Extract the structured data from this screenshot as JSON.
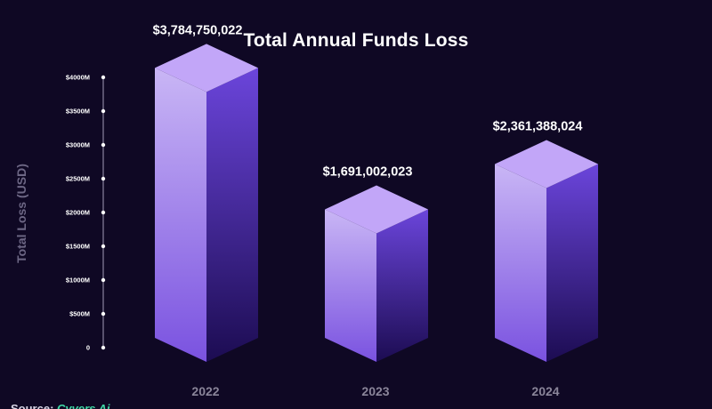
{
  "chart_data": {
    "type": "bar",
    "title": "Total Annual Funds Loss",
    "ylabel": "Total Loss (USD)",
    "xlabel": "",
    "categories": [
      "2022",
      "2023",
      "2024"
    ],
    "values": [
      3784750022,
      1691002023,
      2361388024
    ],
    "data_labels": [
      "$3,784,750,022",
      "$1,691,002,023",
      "$2,361,388,024"
    ],
    "ylim": [
      0,
      4000000000
    ],
    "y_ticks": [
      {
        "value": 0,
        "label": "0"
      },
      {
        "value": 500000000,
        "label": "$500M"
      },
      {
        "value": 1000000000,
        "label": "$1000M"
      },
      {
        "value": 1500000000,
        "label": "$1500M"
      },
      {
        "value": 2000000000,
        "label": "$2000M"
      },
      {
        "value": 2500000000,
        "label": "$2500M"
      },
      {
        "value": 3000000000,
        "label": "$3000M"
      },
      {
        "value": 3500000000,
        "label": "$3500M"
      },
      {
        "value": 4000000000,
        "label": "$4000M"
      }
    ],
    "grid": false,
    "bar_style": "3d",
    "colors": {
      "background": "#0f0824",
      "bar_top": "#c2a6f8",
      "bar_front_light": "#c9b6f5",
      "bar_front_dark": "#7a52e0",
      "bar_side_light": "#6b45db",
      "bar_side_dark": "#1c0c52",
      "axis": "#c9c4dd",
      "category_label": "#8a8599",
      "value_label": "#ffffff",
      "source_link": "#3fd9a6"
    }
  },
  "source": {
    "prefix": "Source: ",
    "name": "Cyvers Ai"
  }
}
